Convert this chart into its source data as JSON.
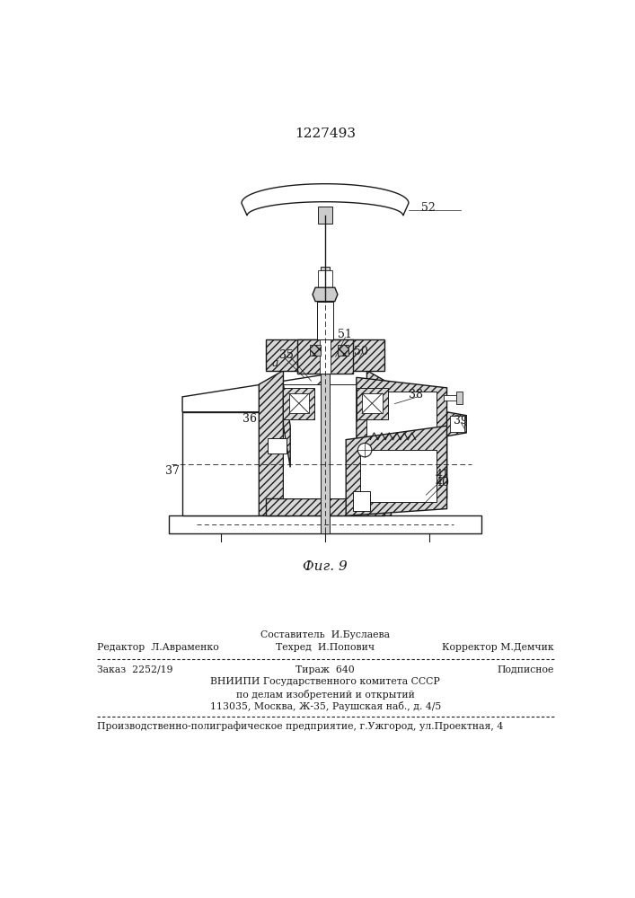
{
  "patent_number": "1227493",
  "fig_label": "Фиг. 9",
  "bg_color": "#ffffff",
  "line_color": "#1a1a1a",
  "footer": {
    "row1_center": "Составитель  И.Буслаева",
    "row2_left": "Редактор  Л.Авраменко",
    "row2_center": "Техред  И.Попович",
    "row2_right": "Корректор М.Демчик",
    "row3_left": "Заказ  2252/19",
    "row3_center": "Тираж  640",
    "row3_right": "Подписное",
    "vnipi1": "ВНИИПИ Государственного комитета СССР",
    "vnipi2": "по делам изобретений и открытий",
    "vnipi3": "113035, Москва, Ж-35, Раушская наб., д. 4/5",
    "last_line": "Производственно-полиграфическое предприятие, г.Ужгород, ул.Проектная, 4"
  }
}
